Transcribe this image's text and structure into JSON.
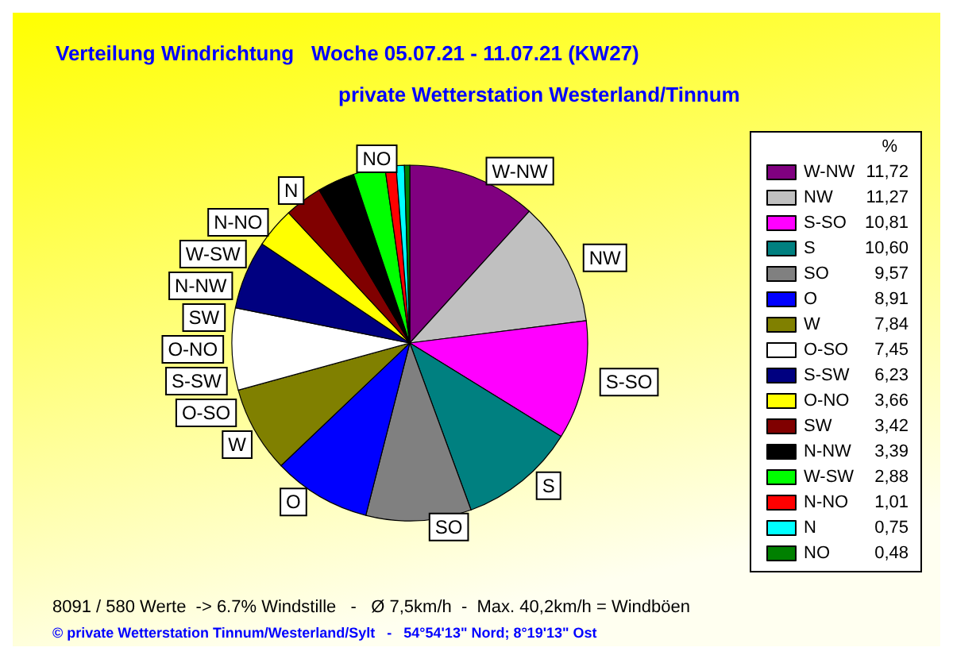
{
  "chart_data": {
    "type": "pie",
    "title": "Verteilung Windrichtung   Woche 05.07.21 - 11.07.21 (KW27)",
    "subtitle": "private Wetterstation Westerland/Tinnum",
    "legend_title": "%",
    "legend": "right",
    "categories": [
      "W-NW",
      "NW",
      "S-SO",
      "S",
      "SO",
      "O",
      "W",
      "O-SO",
      "S-SW",
      "O-NO",
      "SW",
      "N-NW",
      "W-SW",
      "N-NO",
      "N",
      "NO"
    ],
    "values": [
      11.72,
      11.27,
      10.81,
      10.6,
      9.57,
      8.91,
      7.84,
      7.45,
      6.23,
      3.66,
      3.42,
      3.39,
      2.88,
      1.01,
      0.75,
      0.48
    ],
    "value_labels": [
      "11,72",
      "11,27",
      "10,81",
      "10,60",
      "9,57",
      "8,91",
      "7,84",
      "7,45",
      "6,23",
      "3,66",
      "3,42",
      "3,39",
      "2,88",
      "1,01",
      "0,75",
      "0,48"
    ],
    "colors": [
      "#800080",
      "#c0c0c0",
      "#ff00ff",
      "#008080",
      "#808080",
      "#0000ff",
      "#808000",
      "#ffffff",
      "#000080",
      "#ffff00",
      "#800000",
      "#000000",
      "#00ff00",
      "#ff0000",
      "#00ffff",
      "#008000"
    ],
    "annotations": [
      "8091 / 580 Werte  -> 6.7% Windstille   -   Ø 7,5km/h  -  Max. 40,2km/h = Windböen",
      "© private Wetterstation Tinnum/Westerland/Sylt   -   54°54'13\" Nord; 8°19'13\" Ost"
    ]
  }
}
